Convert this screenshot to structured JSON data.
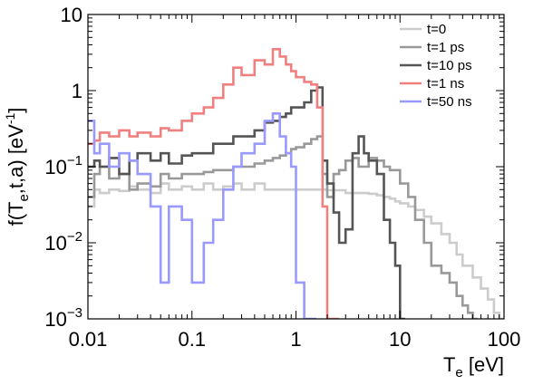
{
  "chart_data": {
    "type": "line",
    "step": true,
    "xscale": "log",
    "yscale": "log",
    "xlim": [
      0.01,
      100
    ],
    "ylim": [
      0.001,
      10
    ],
    "grid": false,
    "legend_position": "top-right",
    "xlabel": {
      "main": "T",
      "sub": "e",
      "unit": " [eV]"
    },
    "ylabel": {
      "pre": "f(T",
      "sub": "e",
      "mid": ",t,a) [eV",
      "sup": "-1",
      "post": "]"
    },
    "x_ticks": [
      {
        "value": 0.01,
        "label": "0.01"
      },
      {
        "value": 0.1,
        "label": "0.1"
      },
      {
        "value": 1,
        "label": "1"
      },
      {
        "value": 10,
        "label": "10"
      },
      {
        "value": 100,
        "label": "100"
      }
    ],
    "y_ticks": [
      {
        "value": 0.001,
        "base": "10",
        "exp": "−3"
      },
      {
        "value": 0.01,
        "base": "10",
        "exp": "−2"
      },
      {
        "value": 0.1,
        "base": "10",
        "exp": "−1"
      },
      {
        "value": 1,
        "base": "1",
        "exp": ""
      },
      {
        "value": 10,
        "base": "10",
        "exp": ""
      }
    ],
    "series": [
      {
        "name": "t=0",
        "color": "#cccccc",
        "x": [
          0.01,
          0.0115,
          0.013,
          0.016,
          0.02,
          0.025,
          0.03,
          0.04,
          0.05,
          0.06,
          0.08,
          0.1,
          0.13,
          0.16,
          0.2,
          0.25,
          0.3,
          0.4,
          0.5,
          0.7,
          1,
          1.5,
          2,
          3,
          4,
          5,
          6,
          7,
          8,
          9,
          10,
          12,
          14,
          17,
          20,
          25,
          30,
          35,
          40,
          50,
          60,
          70,
          80,
          90
        ],
        "y": [
          0.03,
          0.05,
          0.045,
          0.05,
          0.048,
          0.055,
          0.05,
          0.045,
          0.06,
          0.05,
          0.055,
          0.05,
          0.06,
          0.05,
          0.055,
          0.06,
          0.05,
          0.06,
          0.05,
          0.05,
          0.05,
          0.05,
          0.049,
          0.045,
          0.045,
          0.044,
          0.042,
          0.04,
          0.038,
          0.035,
          0.033,
          0.03,
          0.027,
          0.022,
          0.018,
          0.013,
          0.01,
          0.007,
          0.005,
          0.0035,
          0.0025,
          0.0018,
          0.0012,
          0.001
        ]
      },
      {
        "name": "t=1 ps",
        "color": "#999999",
        "x": [
          0.01,
          0.0115,
          0.013,
          0.016,
          0.02,
          0.025,
          0.03,
          0.04,
          0.05,
          0.06,
          0.08,
          0.1,
          0.13,
          0.16,
          0.2,
          0.25,
          0.3,
          0.4,
          0.5,
          0.6,
          0.7,
          0.8,
          0.9,
          1,
          1.2,
          1.4,
          1.6,
          1.8,
          2,
          2.3,
          2.6,
          3,
          3.5,
          4,
          5,
          6,
          7,
          8,
          10,
          12,
          14,
          17,
          20,
          25,
          30,
          35,
          40,
          45,
          50
        ],
        "y": [
          0.04,
          0.08,
          0.1,
          0.07,
          0.08,
          0.05,
          0.06,
          0.055,
          0.08,
          0.07,
          0.08,
          0.08,
          0.085,
          0.09,
          0.09,
          0.1,
          0.1,
          0.11,
          0.12,
          0.13,
          0.14,
          0.15,
          0.17,
          0.18,
          0.2,
          0.23,
          0.25,
          0.08,
          0.04,
          0.08,
          0.09,
          0.12,
          0.13,
          0.1,
          0.13,
          0.12,
          0.1,
          0.09,
          0.06,
          0.04,
          0.02,
          0.01,
          0.005,
          0.004,
          0.003,
          0.002,
          0.0015,
          0.0012,
          0.001
        ]
      },
      {
        "name": "t=10 ps",
        "color": "#555555",
        "x": [
          0.01,
          0.0115,
          0.013,
          0.016,
          0.02,
          0.025,
          0.03,
          0.04,
          0.05,
          0.06,
          0.08,
          0.1,
          0.13,
          0.16,
          0.2,
          0.25,
          0.3,
          0.4,
          0.5,
          0.6,
          0.7,
          0.8,
          0.9,
          1,
          1.2,
          1.4,
          1.6,
          1.8,
          2,
          2.3,
          2.6,
          3,
          3.5,
          4,
          4.5,
          5,
          6,
          7,
          8,
          9,
          10
        ],
        "y": [
          0.1,
          0.12,
          0.1,
          0.13,
          0.08,
          0.12,
          0.15,
          0.12,
          0.15,
          0.11,
          0.14,
          0.15,
          0.15,
          0.2,
          0.2,
          0.25,
          0.25,
          0.3,
          0.38,
          0.4,
          0.45,
          0.5,
          0.6,
          0.6,
          0.7,
          1,
          1.1,
          0.12,
          0.06,
          0.025,
          0.01,
          0.015,
          0.15,
          0.25,
          0.15,
          0.12,
          0.08,
          0.02,
          0.01,
          0.005,
          0.001
        ]
      },
      {
        "name": "t=1 ns",
        "color": "#f08080",
        "x": [
          0.01,
          0.0115,
          0.013,
          0.016,
          0.02,
          0.025,
          0.03,
          0.04,
          0.05,
          0.06,
          0.08,
          0.1,
          0.13,
          0.16,
          0.2,
          0.25,
          0.3,
          0.4,
          0.5,
          0.6,
          0.7,
          0.8,
          0.9,
          1,
          1.2,
          1.4,
          1.6,
          1.8,
          2,
          2.3
        ],
        "y": [
          0.2,
          0.22,
          0.28,
          0.25,
          0.3,
          0.25,
          0.28,
          0.25,
          0.32,
          0.3,
          0.4,
          0.5,
          0.6,
          0.8,
          1.2,
          2,
          1.6,
          2.5,
          2.2,
          3.5,
          2.8,
          2.2,
          1.8,
          1.5,
          1.3,
          1.2,
          0.6,
          0.03,
          0.001,
          0.001
        ]
      },
      {
        "name": "t=50 ns",
        "color": "#9999ff",
        "x": [
          0.01,
          0.0115,
          0.013,
          0.016,
          0.02,
          0.025,
          0.03,
          0.04,
          0.05,
          0.06,
          0.08,
          0.1,
          0.13,
          0.16,
          0.2,
          0.25,
          0.3,
          0.4,
          0.5,
          0.6,
          0.7,
          0.8,
          0.9,
          1,
          1.2,
          1.4
        ],
        "y": [
          0.4,
          0.15,
          0.2,
          0.1,
          0.15,
          0.12,
          0.08,
          0.03,
          0.003,
          0.03,
          0.02,
          0.003,
          0.01,
          0.02,
          0.05,
          0.1,
          0.15,
          0.2,
          0.4,
          0.5,
          0.25,
          0.15,
          0.1,
          0.003,
          0.001,
          0.001
        ]
      }
    ]
  }
}
